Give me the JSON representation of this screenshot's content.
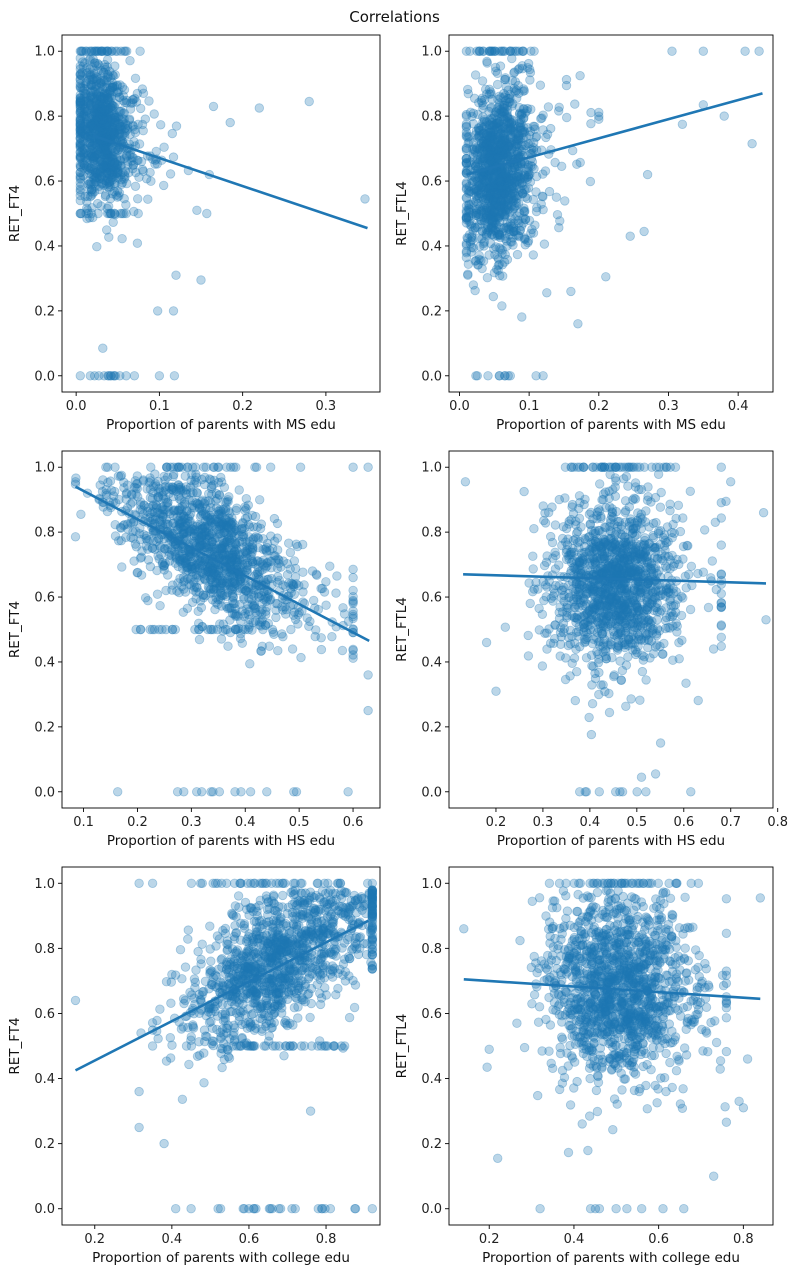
{
  "title": "Correlations",
  "colors": {
    "points": "#1f77b4",
    "fit_line": "#1f77b4"
  },
  "chart_data": [
    {
      "type": "scatter",
      "xlabel": "Proportion of parents with MS edu",
      "ylabel": "RET_FT4",
      "xlim": [
        -0.017,
        0.365
      ],
      "ylim": [
        -0.05,
        1.05
      ],
      "xticks": [
        0.0,
        0.1,
        0.2,
        0.3
      ],
      "xtick_labels": [
        "0.0",
        "0.1",
        "0.2",
        "0.3"
      ],
      "yticks": [
        0.0,
        0.2,
        0.4,
        0.6,
        0.8,
        1.0
      ],
      "ytick_labels": [
        "0.0",
        "0.2",
        "0.4",
        "0.6",
        "0.8",
        "1.0"
      ],
      "cloud": {
        "count": 1000,
        "x_center": 0.03,
        "x_spread": 0.018,
        "y_center": 0.75,
        "y_spread": 0.11,
        "slope": -0.9,
        "x_min": 0.005,
        "x_max": 0.15,
        "p_one": 0.03,
        "p_zero": 0.01,
        "p_half": 0.025
      },
      "points": [
        [
          0.347,
          0.545
        ],
        [
          0.28,
          0.845
        ],
        [
          0.22,
          0.825
        ],
        [
          0.185,
          0.78
        ],
        [
          0.16,
          0.62
        ],
        [
          0.157,
          0.5
        ],
        [
          0.145,
          0.51
        ],
        [
          0.15,
          0.295
        ],
        [
          0.12,
          0.31
        ],
        [
          0.117,
          0.2
        ],
        [
          0.098,
          0.2
        ],
        [
          0.032,
          0.085
        ],
        [
          0.06,
          0.0
        ],
        [
          0.07,
          0.0
        ],
        [
          0.1,
          0.0
        ],
        [
          0.118,
          0.0
        ],
        [
          0.165,
          0.83
        ]
      ],
      "trend": {
        "x": [
          0.02,
          0.35
        ],
        "y": [
          0.74,
          0.455
        ]
      }
    },
    {
      "type": "scatter",
      "xlabel": "Proportion of parents with MS edu",
      "ylabel": "RET_FTL4",
      "xlim": [
        -0.015,
        0.45
      ],
      "ylim": [
        -0.05,
        1.05
      ],
      "xticks": [
        0.0,
        0.1,
        0.2,
        0.3,
        0.4
      ],
      "xtick_labels": [
        "0.0",
        "0.1",
        "0.2",
        "0.3",
        "0.4"
      ],
      "yticks": [
        0.0,
        0.2,
        0.4,
        0.6,
        0.8,
        1.0
      ],
      "ytick_labels": [
        "0.0",
        "0.2",
        "0.4",
        "0.6",
        "0.8",
        "1.0"
      ],
      "cloud": {
        "count": 1300,
        "x_center": 0.055,
        "x_spread": 0.025,
        "y_center": 0.63,
        "y_spread": 0.13,
        "slope": 0.8,
        "x_min": 0.01,
        "x_max": 0.2,
        "p_one": 0.025,
        "p_zero": 0.005,
        "p_half": 0.0
      },
      "points": [
        [
          0.43,
          1.0
        ],
        [
          0.41,
          1.0
        ],
        [
          0.35,
          1.0
        ],
        [
          0.305,
          1.0
        ],
        [
          0.42,
          0.715
        ],
        [
          0.38,
          0.8
        ],
        [
          0.35,
          0.835
        ],
        [
          0.32,
          0.775
        ],
        [
          0.27,
          0.62
        ],
        [
          0.265,
          0.445
        ],
        [
          0.245,
          0.43
        ],
        [
          0.21,
          0.305
        ],
        [
          0.17,
          0.16
        ],
        [
          0.16,
          0.26
        ],
        [
          0.12,
          0.0
        ],
        [
          0.11,
          0.0
        ],
        [
          0.065,
          0.0
        ],
        [
          0.07,
          0.0
        ],
        [
          0.012,
          0.31
        ],
        [
          0.02,
          0.28
        ]
      ],
      "trend": {
        "x": [
          0.01,
          0.435
        ],
        "y": [
          0.62,
          0.87
        ]
      }
    },
    {
      "type": "scatter",
      "xlabel": "Proportion of parents with HS edu",
      "ylabel": "RET_FT4",
      "xlim": [
        0.06,
        0.65
      ],
      "ylim": [
        -0.05,
        1.05
      ],
      "xticks": [
        0.1,
        0.2,
        0.3,
        0.4,
        0.5,
        0.6
      ],
      "xtick_labels": [
        "0.1",
        "0.2",
        "0.3",
        "0.4",
        "0.5",
        "0.6"
      ],
      "yticks": [
        0.0,
        0.2,
        0.4,
        0.6,
        0.8,
        1.0
      ],
      "ytick_labels": [
        "0.0",
        "0.2",
        "0.4",
        "0.6",
        "0.8",
        "1.0"
      ],
      "cloud": {
        "count": 1350,
        "x_center": 0.33,
        "x_spread": 0.08,
        "y_center": 0.75,
        "y_spread": 0.1,
        "slope": -0.85,
        "x_min": 0.085,
        "x_max": 0.6,
        "p_one": 0.03,
        "p_zero": 0.008,
        "p_half": 0.025
      },
      "points": [
        [
          0.628,
          1.0
        ],
        [
          0.628,
          0.36
        ],
        [
          0.628,
          0.25
        ],
        [
          0.6,
          0.49
        ],
        [
          0.57,
          0.665
        ],
        [
          0.55,
          0.575
        ],
        [
          0.52,
          0.525
        ],
        [
          0.095,
          0.855
        ],
        [
          0.085,
          0.955
        ],
        [
          0.31,
          0.0
        ],
        [
          0.34,
          0.0
        ],
        [
          0.41,
          0.0
        ],
        [
          0.44,
          0.0
        ],
        [
          0.49,
          0.0
        ],
        [
          0.495,
          0.0
        ]
      ],
      "trend": {
        "x": [
          0.085,
          0.63
        ],
        "y": [
          0.94,
          0.465
        ]
      }
    },
    {
      "type": "scatter",
      "xlabel": "Proportion of parents with HS edu",
      "ylabel": "RET_FTL4",
      "xlim": [
        0.1,
        0.79
      ],
      "ylim": [
        -0.05,
        1.05
      ],
      "xticks": [
        0.2,
        0.3,
        0.4,
        0.5,
        0.6,
        0.7,
        0.8
      ],
      "xtick_labels": [
        "0.2",
        "0.3",
        "0.4",
        "0.5",
        "0.6",
        "0.7",
        "0.8"
      ],
      "yticks": [
        0.0,
        0.2,
        0.4,
        0.6,
        0.8,
        1.0
      ],
      "ytick_labels": [
        "0.0",
        "0.2",
        "0.4",
        "0.6",
        "0.8",
        "1.0"
      ],
      "cloud": {
        "count": 1400,
        "x_center": 0.445,
        "x_spread": 0.065,
        "y_center": 0.64,
        "y_spread": 0.13,
        "slope": -0.05,
        "x_min": 0.22,
        "x_max": 0.68,
        "p_one": 0.025,
        "p_zero": 0.004,
        "p_half": 0.0
      },
      "points": [
        [
          0.135,
          0.955
        ],
        [
          0.77,
          0.86
        ],
        [
          0.775,
          0.53
        ],
        [
          0.7,
          0.955
        ],
        [
          0.69,
          0.895
        ],
        [
          0.2,
          0.31
        ],
        [
          0.18,
          0.46
        ],
        [
          0.615,
          0.0
        ],
        [
          0.54,
          0.055
        ],
        [
          0.51,
          0.045
        ],
        [
          0.39,
          0.0
        ],
        [
          0.42,
          0.0
        ],
        [
          0.455,
          0.0
        ],
        [
          0.26,
          0.925
        ]
      ],
      "trend": {
        "x": [
          0.13,
          0.775
        ],
        "y": [
          0.67,
          0.642
        ]
      }
    },
    {
      "type": "scatter",
      "xlabel": "Proportion of parents with college edu",
      "ylabel": "RET_FT4",
      "xlim": [
        0.115,
        0.94
      ],
      "ylim": [
        -0.05,
        1.05
      ],
      "xticks": [
        0.2,
        0.4,
        0.6,
        0.8
      ],
      "xtick_labels": [
        "0.2",
        "0.4",
        "0.6",
        "0.8"
      ],
      "yticks": [
        0.0,
        0.2,
        0.4,
        0.6,
        0.8,
        1.0
      ],
      "ytick_labels": [
        "0.0",
        "0.2",
        "0.4",
        "0.6",
        "0.8",
        "1.0"
      ],
      "cloud": {
        "count": 1350,
        "x_center": 0.67,
        "x_spread": 0.12,
        "y_center": 0.76,
        "y_spread": 0.1,
        "slope": 0.6,
        "x_min": 0.35,
        "x_max": 0.92,
        "p_one": 0.035,
        "p_zero": 0.008,
        "p_half": 0.025
      },
      "points": [
        [
          0.15,
          0.64
        ],
        [
          0.315,
          1.0
        ],
        [
          0.315,
          0.36
        ],
        [
          0.315,
          0.25
        ],
        [
          0.32,
          0.54
        ],
        [
          0.35,
          0.5
        ],
        [
          0.38,
          0.2
        ],
        [
          0.41,
          0.0
        ],
        [
          0.45,
          0.0
        ],
        [
          0.52,
          0.0
        ],
        [
          0.6,
          0.0
        ],
        [
          0.66,
          0.0
        ],
        [
          0.72,
          0.0
        ],
        [
          0.78,
          0.0
        ],
        [
          0.76,
          0.3
        ]
      ],
      "trend": {
        "x": [
          0.15,
          0.91
        ],
        "y": [
          0.425,
          0.885
        ]
      }
    },
    {
      "type": "scatter",
      "xlabel": "Proportion of parents with college edu",
      "ylabel": "RET_FTL4",
      "xlim": [
        0.105,
        0.87
      ],
      "ylim": [
        -0.05,
        1.05
      ],
      "xticks": [
        0.2,
        0.4,
        0.6,
        0.8
      ],
      "xtick_labels": [
        "0.2",
        "0.4",
        "0.6",
        "0.8"
      ],
      "yticks": [
        0.0,
        0.2,
        0.4,
        0.6,
        0.8,
        1.0
      ],
      "ytick_labels": [
        "0.0",
        "0.2",
        "0.4",
        "0.6",
        "0.8",
        "1.0"
      ],
      "cloud": {
        "count": 1450,
        "x_center": 0.5,
        "x_spread": 0.085,
        "y_center": 0.67,
        "y_spread": 0.14,
        "slope": -0.08,
        "x_min": 0.25,
        "x_max": 0.76,
        "p_one": 0.03,
        "p_zero": 0.004,
        "p_half": 0.0
      },
      "points": [
        [
          0.14,
          0.86
        ],
        [
          0.84,
          0.955
        ],
        [
          0.81,
          0.46
        ],
        [
          0.79,
          0.33
        ],
        [
          0.8,
          0.31
        ],
        [
          0.2,
          0.49
        ],
        [
          0.22,
          0.155
        ],
        [
          0.195,
          0.435
        ],
        [
          0.32,
          0.0
        ],
        [
          0.46,
          0.0
        ],
        [
          0.525,
          0.0
        ],
        [
          0.56,
          0.0
        ],
        [
          0.76,
          0.73
        ],
        [
          0.73,
          0.1
        ]
      ],
      "trend": {
        "x": [
          0.14,
          0.84
        ],
        "y": [
          0.705,
          0.645
        ]
      }
    }
  ]
}
